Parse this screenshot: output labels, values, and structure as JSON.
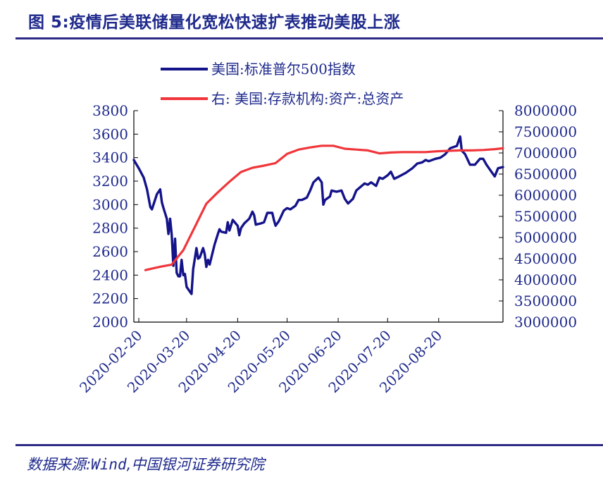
{
  "title": "图 5:疫情后美联储量化宽松快速扩表推动美股上涨",
  "source": {
    "prefix": "数据来源:",
    "name": "Wind",
    "suffix": ",中国银河证券研究院"
  },
  "colors": {
    "title": "#1f2a8c",
    "axis_text": "#1f2a8c",
    "sp500": "#14138a",
    "ratio": "#f0363b",
    "rule": "#2e2a86"
  },
  "chart_data": {
    "type": "line",
    "legend_position": "top",
    "grid": false,
    "x_type": "date",
    "x_range": [
      "2020-02-17",
      "2020-09-28"
    ],
    "x_ticks": [
      "2020-02-20",
      "2020-03-20",
      "2020-04-20",
      "2020-05-20",
      "2020-06-20",
      "2020-07-20",
      "2020-08-20"
    ],
    "y_left": {
      "range": [
        2000,
        3800
      ],
      "ticks": [
        2000,
        2200,
        2400,
        2600,
        2800,
        3000,
        3200,
        3400,
        3600,
        3800
      ]
    },
    "y_right": {
      "range": [
        3000000,
        8000000
      ],
      "ticks": [
        3000000,
        3500000,
        4000000,
        4500000,
        5000000,
        5500000,
        6000000,
        6500000,
        7000000,
        7500000,
        8000000
      ]
    },
    "series": [
      {
        "name": "美国:标准普尔500指数",
        "axis": "left",
        "color": "#14138a",
        "points": [
          [
            "2020-02-17",
            3380
          ],
          [
            "2020-02-20",
            3310
          ],
          [
            "2020-02-23",
            3230
          ],
          [
            "2020-02-25",
            3130
          ],
          [
            "2020-02-27",
            2980
          ],
          [
            "2020-02-28",
            2960
          ],
          [
            "2020-03-02",
            3090
          ],
          [
            "2020-03-04",
            3130
          ],
          [
            "2020-03-05",
            3020
          ],
          [
            "2020-03-06",
            2970
          ],
          [
            "2020-03-08",
            2880
          ],
          [
            "2020-03-09",
            2750
          ],
          [
            "2020-03-10",
            2880
          ],
          [
            "2020-03-11",
            2740
          ],
          [
            "2020-03-12",
            2480
          ],
          [
            "2020-03-13",
            2710
          ],
          [
            "2020-03-14",
            2420
          ],
          [
            "2020-03-15",
            2390
          ],
          [
            "2020-03-16",
            2390
          ],
          [
            "2020-03-17",
            2530
          ],
          [
            "2020-03-18",
            2400
          ],
          [
            "2020-03-19",
            2410
          ],
          [
            "2020-03-20",
            2300
          ],
          [
            "2020-03-22",
            2260
          ],
          [
            "2020-03-23",
            2240
          ],
          [
            "2020-03-24",
            2450
          ],
          [
            "2020-03-26",
            2630
          ],
          [
            "2020-03-27",
            2540
          ],
          [
            "2020-03-28",
            2550
          ],
          [
            "2020-03-30",
            2630
          ],
          [
            "2020-03-31",
            2580
          ],
          [
            "2020-04-01",
            2470
          ],
          [
            "2020-04-02",
            2530
          ],
          [
            "2020-04-03",
            2490
          ],
          [
            "2020-04-06",
            2660
          ],
          [
            "2020-04-08",
            2750
          ],
          [
            "2020-04-09",
            2790
          ],
          [
            "2020-04-10",
            2770
          ],
          [
            "2020-04-13",
            2760
          ],
          [
            "2020-04-14",
            2850
          ],
          [
            "2020-04-15",
            2780
          ],
          [
            "2020-04-17",
            2870
          ],
          [
            "2020-04-20",
            2820
          ],
          [
            "2020-04-21",
            2740
          ],
          [
            "2020-04-22",
            2800
          ],
          [
            "2020-04-24",
            2840
          ],
          [
            "2020-04-27",
            2880
          ],
          [
            "2020-04-29",
            2940
          ],
          [
            "2020-04-30",
            2910
          ],
          [
            "2020-05-01",
            2830
          ],
          [
            "2020-05-04",
            2840
          ],
          [
            "2020-05-06",
            2850
          ],
          [
            "2020-05-08",
            2930
          ],
          [
            "2020-05-11",
            2930
          ],
          [
            "2020-05-12",
            2870
          ],
          [
            "2020-05-13",
            2820
          ],
          [
            "2020-05-15",
            2860
          ],
          [
            "2020-05-18",
            2950
          ],
          [
            "2020-05-20",
            2970
          ],
          [
            "2020-05-22",
            2960
          ],
          [
            "2020-05-25",
            2990
          ],
          [
            "2020-05-27",
            3040
          ],
          [
            "2020-05-29",
            3040
          ],
          [
            "2020-06-01",
            3060
          ],
          [
            "2020-06-03",
            3120
          ],
          [
            "2020-06-05",
            3190
          ],
          [
            "2020-06-08",
            3230
          ],
          [
            "2020-06-09",
            3210
          ],
          [
            "2020-06-10",
            3190
          ],
          [
            "2020-06-11",
            3000
          ],
          [
            "2020-06-12",
            3040
          ],
          [
            "2020-06-15",
            3070
          ],
          [
            "2020-06-16",
            3120
          ],
          [
            "2020-06-19",
            3110
          ],
          [
            "2020-06-22",
            3120
          ],
          [
            "2020-06-24",
            3050
          ],
          [
            "2020-06-26",
            3010
          ],
          [
            "2020-06-29",
            3050
          ],
          [
            "2020-07-01",
            3120
          ],
          [
            "2020-07-06",
            3180
          ],
          [
            "2020-07-08",
            3170
          ],
          [
            "2020-07-10",
            3190
          ],
          [
            "2020-07-13",
            3160
          ],
          [
            "2020-07-15",
            3230
          ],
          [
            "2020-07-17",
            3220
          ],
          [
            "2020-07-20",
            3250
          ],
          [
            "2020-07-22",
            3280
          ],
          [
            "2020-07-24",
            3220
          ],
          [
            "2020-07-27",
            3240
          ],
          [
            "2020-07-31",
            3270
          ],
          [
            "2020-08-04",
            3310
          ],
          [
            "2020-08-07",
            3350
          ],
          [
            "2020-08-10",
            3360
          ],
          [
            "2020-08-12",
            3380
          ],
          [
            "2020-08-14",
            3370
          ],
          [
            "2020-08-18",
            3390
          ],
          [
            "2020-08-21",
            3400
          ],
          [
            "2020-08-24",
            3430
          ],
          [
            "2020-08-27",
            3480
          ],
          [
            "2020-08-31",
            3500
          ],
          [
            "2020-09-02",
            3580
          ],
          [
            "2020-09-03",
            3460
          ],
          [
            "2020-09-05",
            3430
          ],
          [
            "2020-09-08",
            3340
          ],
          [
            "2020-09-11",
            3340
          ],
          [
            "2020-09-14",
            3390
          ],
          [
            "2020-09-16",
            3390
          ],
          [
            "2020-09-18",
            3340
          ],
          [
            "2020-09-21",
            3280
          ],
          [
            "2020-09-23",
            3240
          ],
          [
            "2020-09-25",
            3310
          ],
          [
            "2020-09-28",
            3320
          ]
        ]
      },
      {
        "name": "右: 美国:存款机构:资产:总资产",
        "axis": "right",
        "color": "#f0363b",
        "points": [
          [
            "2020-02-24",
            4230000
          ],
          [
            "2020-03-04",
            4310000
          ],
          [
            "2020-03-11",
            4360000
          ],
          [
            "2020-03-18",
            4700000
          ],
          [
            "2020-03-25",
            5250000
          ],
          [
            "2020-04-01",
            5800000
          ],
          [
            "2020-04-08",
            6070000
          ],
          [
            "2020-04-15",
            6320000
          ],
          [
            "2020-04-22",
            6550000
          ],
          [
            "2020-04-29",
            6650000
          ],
          [
            "2020-05-06",
            6700000
          ],
          [
            "2020-05-13",
            6760000
          ],
          [
            "2020-05-20",
            6980000
          ],
          [
            "2020-05-27",
            7080000
          ],
          [
            "2020-06-03",
            7130000
          ],
          [
            "2020-06-10",
            7170000
          ],
          [
            "2020-06-17",
            7170000
          ],
          [
            "2020-06-24",
            7100000
          ],
          [
            "2020-07-01",
            7080000
          ],
          [
            "2020-07-08",
            7060000
          ],
          [
            "2020-07-15",
            6990000
          ],
          [
            "2020-07-22",
            7010000
          ],
          [
            "2020-07-29",
            7020000
          ],
          [
            "2020-08-05",
            7020000
          ],
          [
            "2020-08-12",
            7020000
          ],
          [
            "2020-08-19",
            7040000
          ],
          [
            "2020-08-26",
            7050000
          ],
          [
            "2020-09-02",
            7060000
          ],
          [
            "2020-09-09",
            7060000
          ],
          [
            "2020-09-16",
            7070000
          ],
          [
            "2020-09-23",
            7090000
          ],
          [
            "2020-09-28",
            7110000
          ]
        ]
      }
    ]
  }
}
